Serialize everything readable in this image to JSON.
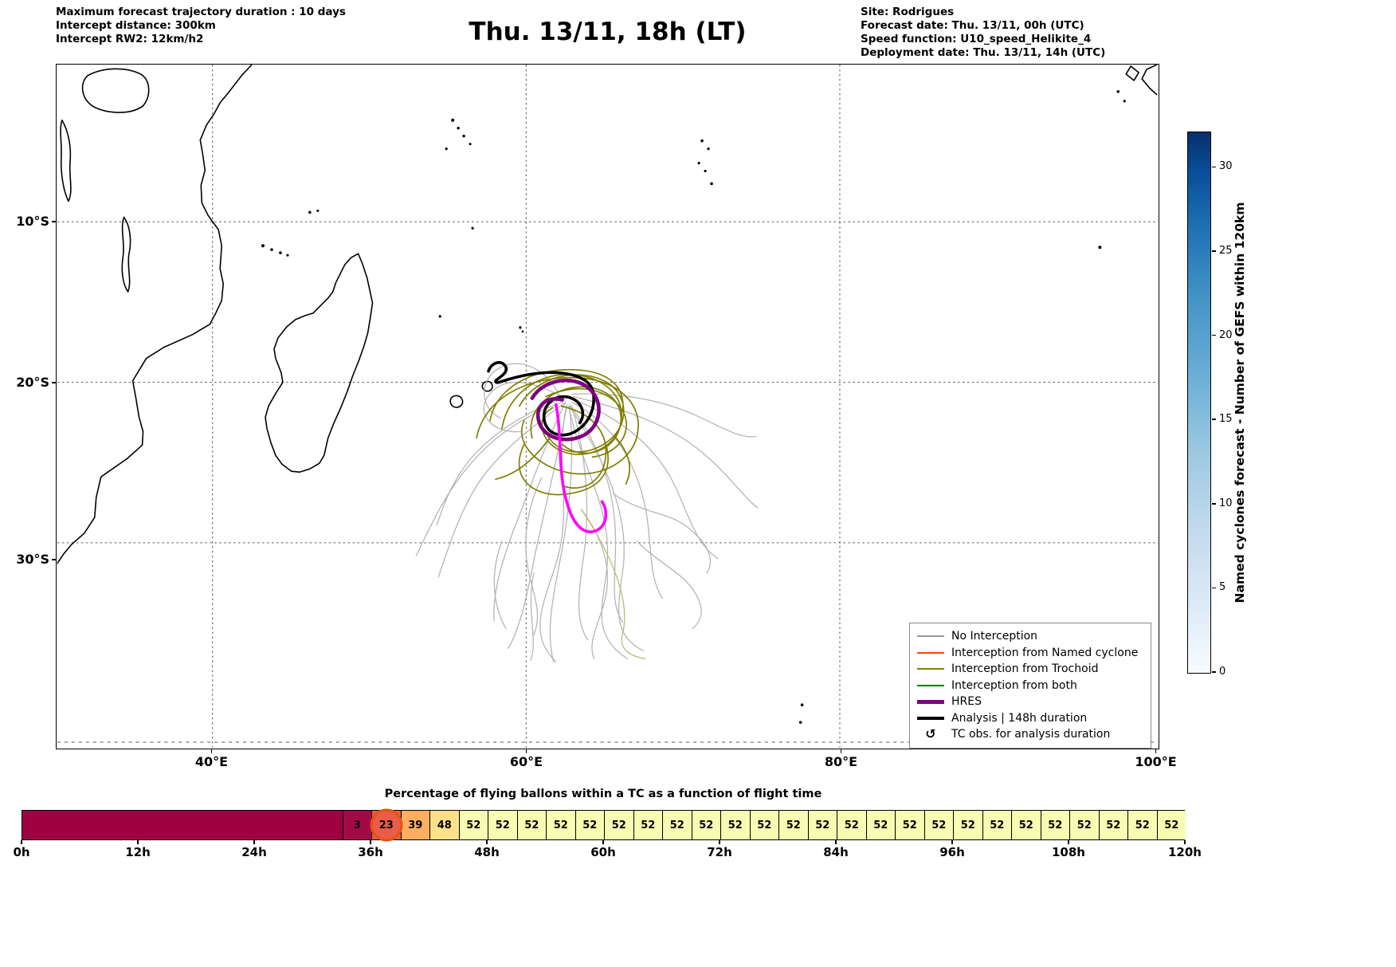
{
  "header": {
    "left_lines": [
      "Maximum forecast trajectory duration : 10 days",
      "Intercept distance: 300km",
      "Intercept RW2: 12km/h2"
    ],
    "title": "Thu. 13/11, 18h (LT)",
    "right_lines": [
      "Site: Rodrigues",
      "Forecast date: Thu. 13/11, 00h (UTC)",
      "Speed function: U10_speed_Helikite_4",
      "Deployment date: Thu. 13/11, 14h (UTC)"
    ]
  },
  "map": {
    "x_tick_labels": [
      "40°E",
      "60°E",
      "80°E",
      "100°E"
    ],
    "y_tick_labels": [
      "10°S",
      "20°S",
      "30°S"
    ],
    "legend": {
      "items": [
        {
          "label": "No Interception",
          "color": "#999999",
          "thick": false,
          "marker": "line"
        },
        {
          "label": "Interception from Named cyclone",
          "color": "#ff4500",
          "thick": false,
          "marker": "line"
        },
        {
          "label": "Interception from Trochoid",
          "color": "#808000",
          "thick": false,
          "marker": "line"
        },
        {
          "label": "Interception from both",
          "color": "#008000",
          "thick": false,
          "marker": "line"
        },
        {
          "label": "HRES",
          "color": "#800080",
          "thick": true,
          "marker": "line"
        },
        {
          "label": "Analysis | 148h duration",
          "color": "#000000",
          "thick": true,
          "marker": "line"
        },
        {
          "label": "TC obs. for analysis duration",
          "color": "#000000",
          "thick": false,
          "marker": "↺"
        }
      ]
    }
  },
  "colorbar": {
    "label": "Named cyclones forecast - Number of GEFS within 120km",
    "tick_values": [
      30,
      25,
      20,
      15,
      10,
      5,
      0
    ],
    "gradient_top": "#08306b",
    "gradient_bottom": "#f7fbff"
  },
  "strip": {
    "title": "Percentage of flying ballons within a TC as a function of flight time",
    "x_tick_labels": [
      "0h",
      "12h",
      "24h",
      "36h",
      "48h",
      "60h",
      "72h",
      "84h",
      "96h",
      "108h",
      "120h"
    ],
    "lead_color": "#9e0142",
    "cell_colors": [
      "#a30a45",
      "#ea5c47",
      "#fdae61",
      "#fee08b",
      "#f7fcb3",
      "#f7fcb3",
      "#f7fcb3",
      "#f7fcb3",
      "#f7fcb3",
      "#f7fcb3",
      "#f7fcb3",
      "#f7fcb3",
      "#f7fcb3",
      "#f7fcb3",
      "#f7fcb3",
      "#f7fcb3",
      "#f7fcb3",
      "#f7fcb3",
      "#f7fcb3",
      "#f7fcb3",
      "#f7fcb3",
      "#f7fcb3",
      "#f7fcb3",
      "#f7fcb3",
      "#f7fcb3",
      "#f7fcb3",
      "#f7fcb3",
      "#f7fcb3",
      "#f7fcb3"
    ],
    "circled_index": 1,
    "circle_color": "#e2540e"
  },
  "chart_data": {
    "type": "heatmap",
    "title": "Percentage of flying ballons within a TC as a function of flight time",
    "xlabel": "flight time",
    "x_ticks": [
      "0h",
      "12h",
      "24h",
      "36h",
      "48h",
      "60h",
      "72h",
      "84h",
      "96h",
      "108h",
      "120h"
    ],
    "cell_width_hours": 3,
    "unlabeled_region": {
      "start_hour": 0,
      "end_hour": 33,
      "value": 0
    },
    "first_labeled_cell_start_hour": 33,
    "values": [
      3,
      23,
      39,
      48,
      52,
      52,
      52,
      52,
      52,
      52,
      52,
      52,
      52,
      52,
      52,
      52,
      52,
      52,
      52,
      52,
      52,
      52,
      52,
      52,
      52,
      52,
      52,
      52,
      52
    ],
    "highlighted_value": 23,
    "colorbar": {
      "label": "Named cyclones forecast - Number of GEFS within 120km",
      "ticks": [
        0,
        5,
        10,
        15,
        20,
        25,
        30
      ]
    },
    "map_panel": {
      "type": "trajectory-map",
      "x_ticks": [
        "40°E",
        "60°E",
        "80°E",
        "100°E"
      ],
      "y_ticks": [
        "10°S",
        "20°S",
        "30°S"
      ],
      "legend": [
        "No Interception",
        "Interception from Named cyclone",
        "Interception from Trochoid",
        "Interception from both",
        "HRES",
        "Analysis | 148h duration",
        "TC obs. for analysis duration"
      ],
      "notes": "Balloon trajectory ensemble clustered near 60-65°E / 20-25°S east of Madagascar, spreading south-southeast"
    }
  }
}
